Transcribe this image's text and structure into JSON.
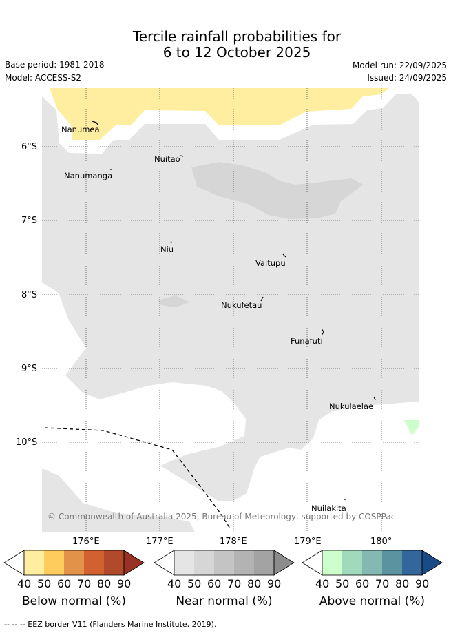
{
  "title_line1": "Tercile rainfall probabilities for",
  "title_line2": "6 to 12 October 2025",
  "base_period": "Base period: 1981-2018",
  "model": "Model: ACCESS-S2",
  "model_run": "Model run: 22/09/2025",
  "issued": "Issued: 24/09/2025",
  "lat_labels": [
    "6°S",
    "7°S",
    "8°S",
    "9°S",
    "10°S"
  ],
  "lon_labels": [
    "176°E",
    "177°E",
    "178°E",
    "179°E",
    "180°"
  ],
  "places": [
    "Nanumea",
    "Nuitao",
    "Nanumanga",
    "Niu",
    "Vaitupu",
    "Nukufetau",
    "Funafuti",
    "Nukulaelae",
    "Nuilakita"
  ],
  "copyright": "© Commonwealth of Australia 2025, Bureau of Meteorology, supported by COSPPac",
  "colorbars": [
    {
      "title": "Below normal (%)",
      "ticks": [
        "40",
        "50",
        "60",
        "70",
        "80",
        "90"
      ],
      "colors": [
        "#ffeda0",
        "#fecc5c",
        "#e3924a",
        "#d1622f",
        "#b14a2a",
        "#993225"
      ]
    },
    {
      "title": "Near normal (%)",
      "ticks": [
        "40",
        "50",
        "60",
        "70",
        "80",
        "90"
      ],
      "colors": [
        "#e5e5e5",
        "#d6d6d6",
        "#c4c4c4",
        "#b3b3b3",
        "#a3a3a3",
        "#8c8c8c"
      ]
    },
    {
      "title": "Above normal (%)",
      "ticks": [
        "40",
        "50",
        "60",
        "70",
        "80",
        "90"
      ],
      "colors": [
        "#ccffcc",
        "#a1d9bc",
        "#84b9b2",
        "#5b93a1",
        "#33679c",
        "#1b4b87"
      ]
    }
  ],
  "footer": "--  --  -- EEZ border V11 (Flanders Marine Institute, 2019)."
}
